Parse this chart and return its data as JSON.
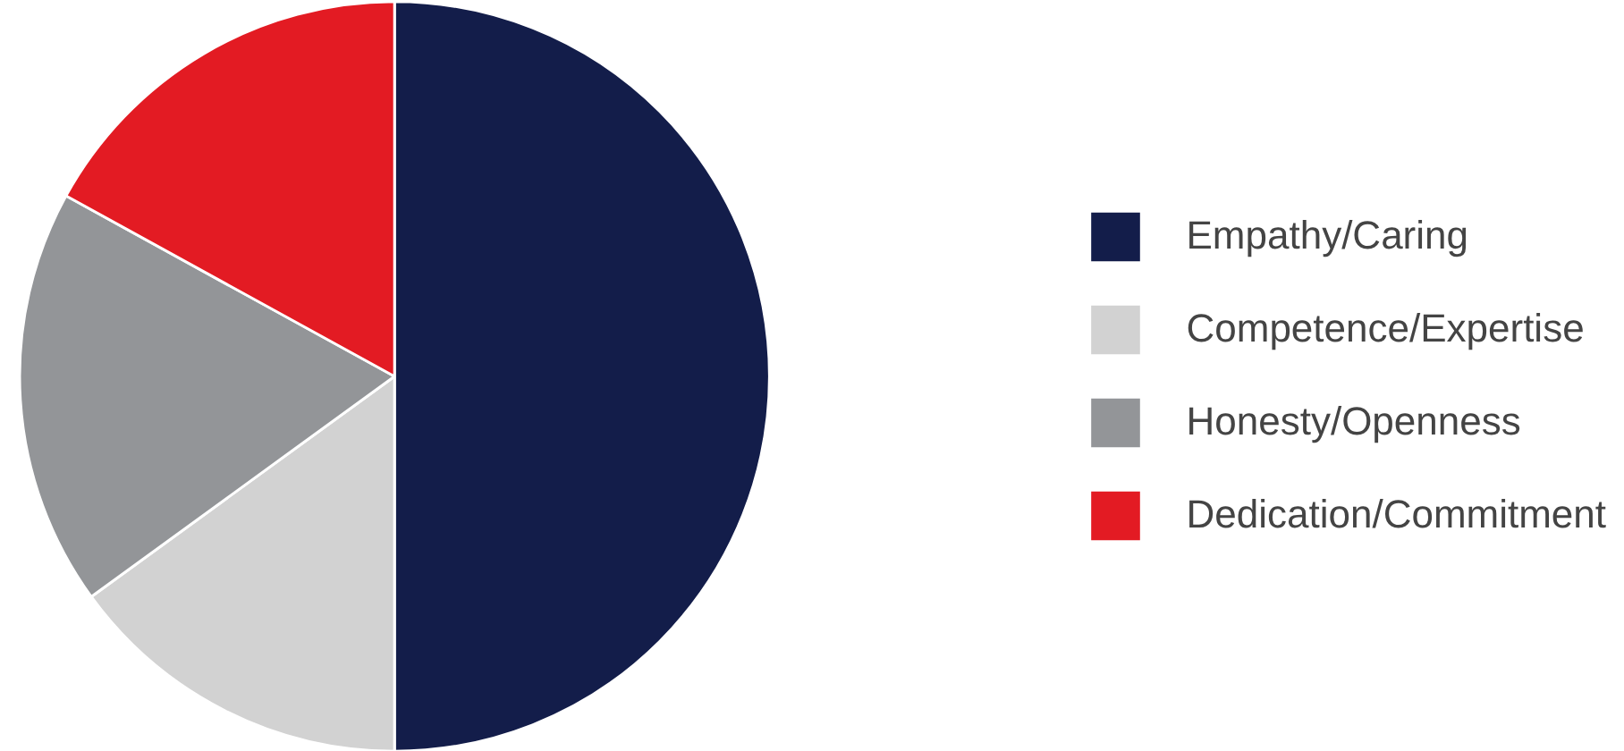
{
  "chart_data": {
    "type": "pie",
    "categories": [
      "Empathy/Caring",
      "Competence/Expertise",
      "Honesty/Openness",
      "Dedication/Commitment"
    ],
    "values": [
      50,
      15,
      18,
      17
    ],
    "colors": [
      "#131d4a",
      "#d2d2d2",
      "#939598",
      "#e31b23"
    ],
    "legend": "right"
  }
}
